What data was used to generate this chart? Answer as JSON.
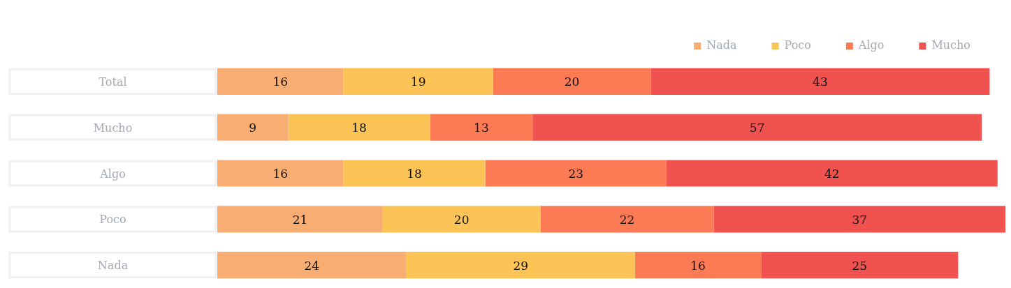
{
  "chart_data": {
    "type": "bar",
    "orientation": "horizontal",
    "stacked": true,
    "data_labels": true,
    "legend": "top right",
    "categories": [
      "Total",
      "Mucho",
      "Algo",
      "Poco",
      "Nada"
    ],
    "series": [
      {
        "name": "Nada",
        "color": "#f8ad72",
        "values": [
          16,
          9,
          16,
          21,
          24
        ]
      },
      {
        "name": "Poco",
        "color": "#fcc457",
        "values": [
          19,
          18,
          18,
          20,
          29
        ]
      },
      {
        "name": "Algo",
        "color": "#fc7b55",
        "values": [
          20,
          13,
          23,
          22,
          16
        ]
      },
      {
        "name": "Mucho",
        "color": "#ef524f",
        "values": [
          43,
          57,
          42,
          37,
          25
        ]
      }
    ]
  }
}
